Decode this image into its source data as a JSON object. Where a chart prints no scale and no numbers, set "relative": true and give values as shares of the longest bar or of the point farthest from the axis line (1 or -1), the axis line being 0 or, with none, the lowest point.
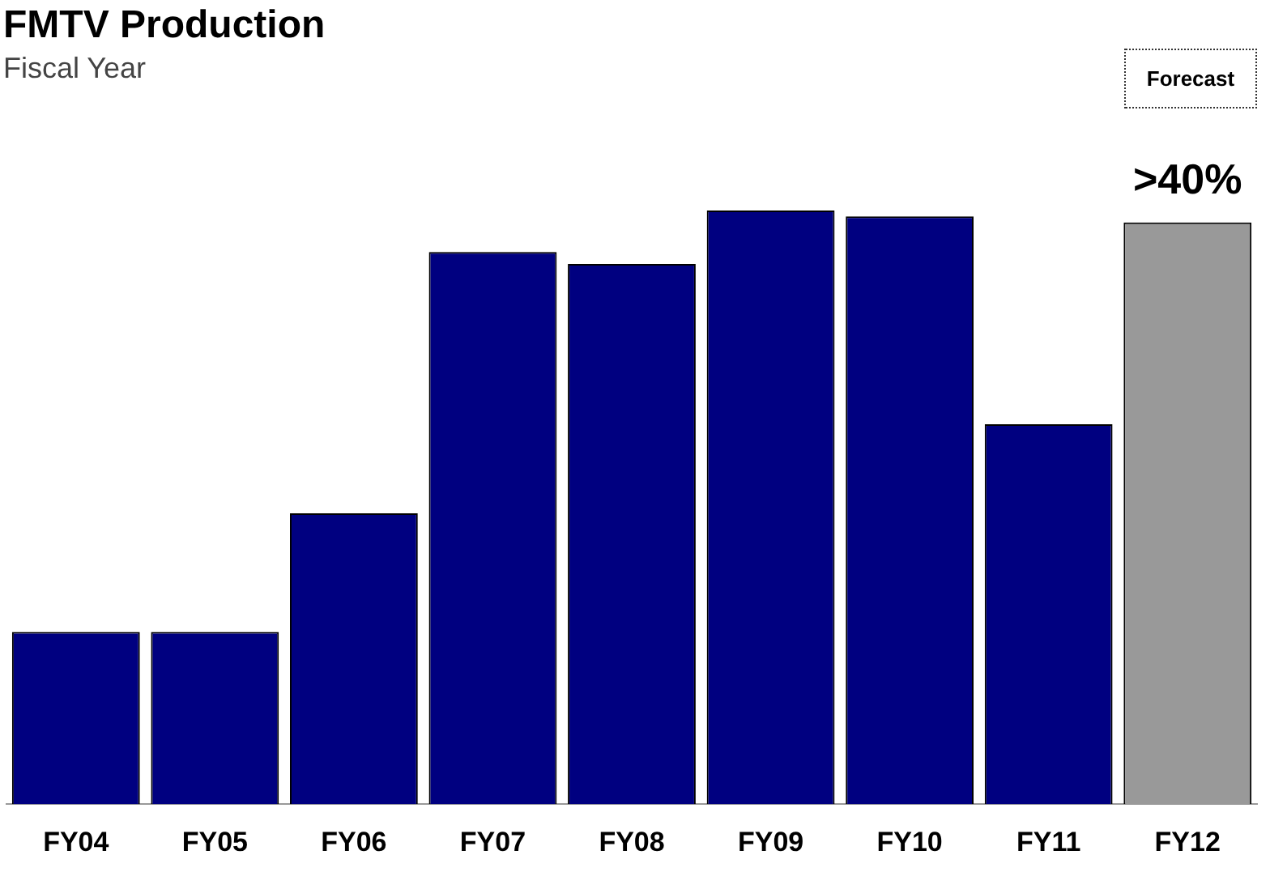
{
  "chart_data": {
    "type": "bar",
    "title": "FMTV Production",
    "subtitle": "Fiscal Year",
    "categories": [
      "FY04",
      "FY05",
      "FY06",
      "FY07",
      "FY08",
      "FY09",
      "FY10",
      "FY11",
      "FY12"
    ],
    "values": [
      0.29,
      0.29,
      0.49,
      0.93,
      0.91,
      1,
      0.99,
      0.64,
      0.98
    ],
    "colors": [
      "#000080",
      "#000080",
      "#000080",
      "#000080",
      "#000080",
      "#000080",
      "#000080",
      "#000080",
      "#999999"
    ],
    "relative": true,
    "annotations": [
      "Forecast",
      {
        "text": ">40%",
        "x": "FY12",
        "y": 0.98
      }
    ]
  }
}
